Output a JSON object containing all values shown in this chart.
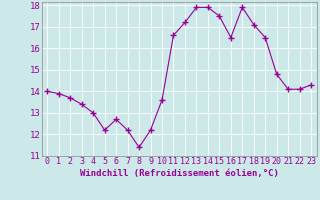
{
  "hours": [
    0,
    1,
    2,
    3,
    4,
    5,
    6,
    7,
    8,
    9,
    10,
    11,
    12,
    13,
    14,
    15,
    16,
    17,
    18,
    19,
    20,
    21,
    22,
    23
  ],
  "values": [
    14.0,
    13.9,
    13.7,
    13.4,
    13.0,
    12.2,
    12.7,
    12.2,
    11.4,
    12.2,
    13.6,
    16.6,
    17.2,
    17.9,
    17.9,
    17.5,
    16.5,
    17.9,
    17.1,
    16.5,
    14.8,
    14.1,
    14.1,
    14.3
  ],
  "xlabel": "Windchill (Refroidissement éolien,°C)",
  "ylim_min": 11,
  "ylim_max": 18,
  "xlim_min": 0,
  "xlim_max": 23,
  "yticks": [
    11,
    12,
    13,
    14,
    15,
    16,
    17,
    18
  ],
  "xticks": [
    0,
    1,
    2,
    3,
    4,
    5,
    6,
    7,
    8,
    9,
    10,
    11,
    12,
    13,
    14,
    15,
    16,
    17,
    18,
    19,
    20,
    21,
    22,
    23
  ],
  "line_color": "#990099",
  "marker_color": "#990099",
  "bg_color": "#cce8e8",
  "grid_color": "#ffffff",
  "axis_label_color": "#990099",
  "tick_label_color": "#990099",
  "spine_color": "#888888",
  "tick_fontsize": 6,
  "xlabel_fontsize": 6.5,
  "xlabel_fontweight": "bold"
}
